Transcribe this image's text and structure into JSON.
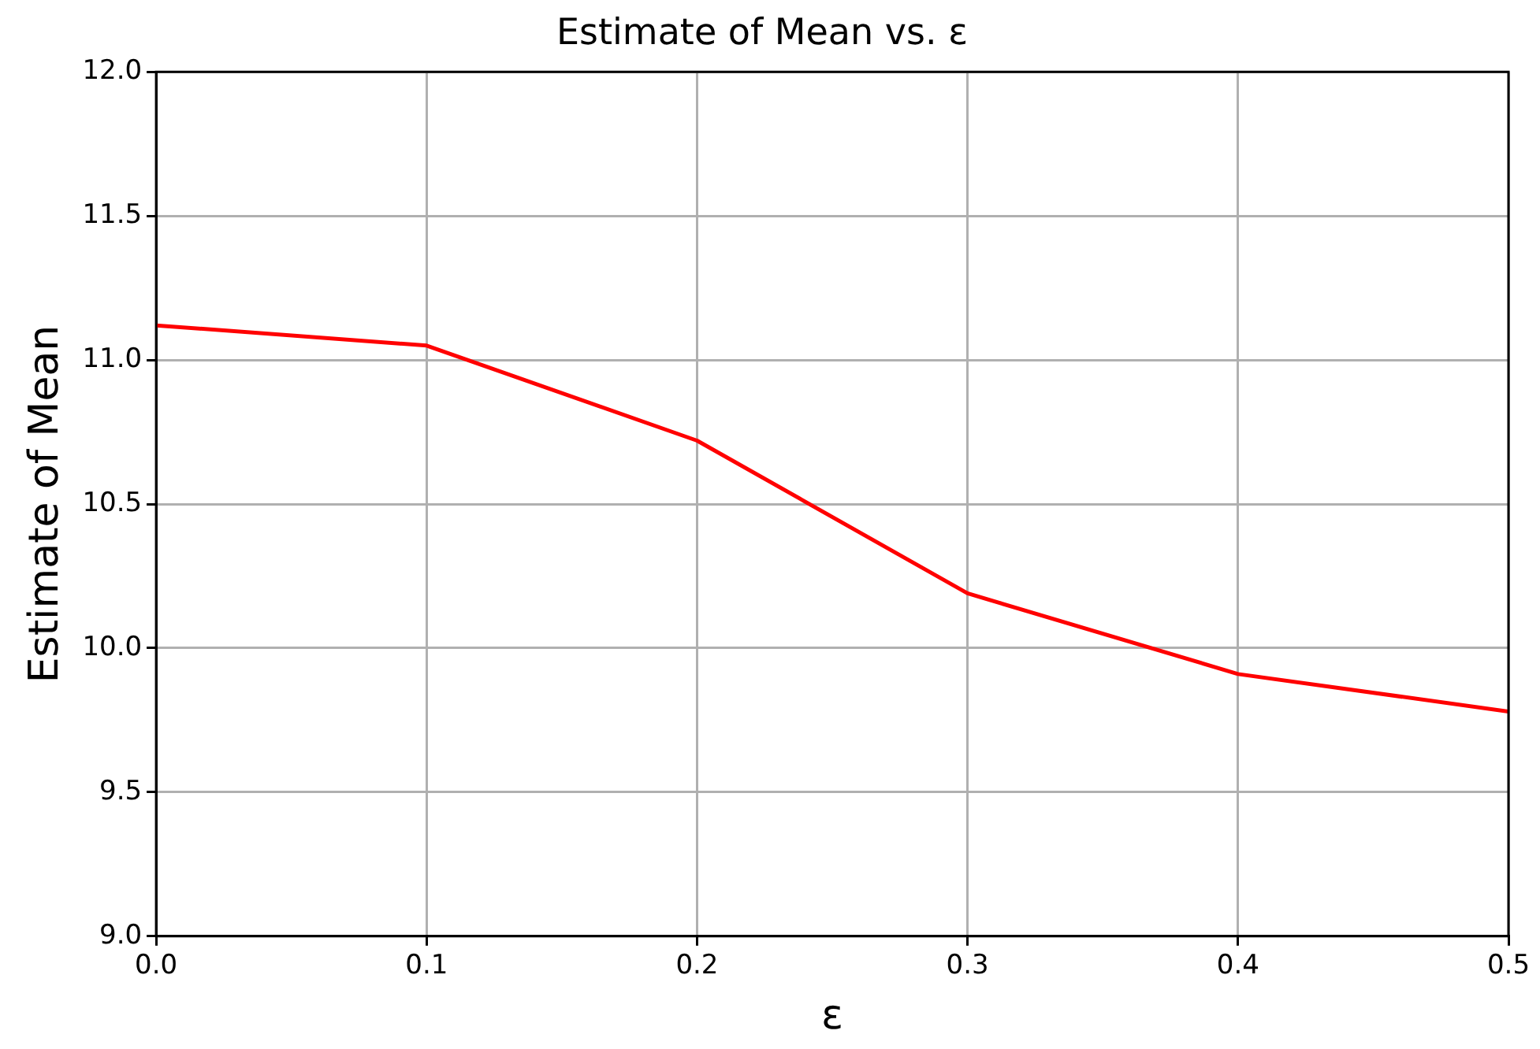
{
  "chart_data": {
    "type": "line",
    "title": "Estimate of Mean vs. ε",
    "xlabel": "ε",
    "ylabel": "Estimate of Mean",
    "x": [
      0,
      0.1,
      0.2,
      0.3,
      0.4,
      0.5
    ],
    "series": [
      {
        "color": "#ff0000",
        "values": [
          11.12,
          11.05,
          10.72,
          10.19,
          9.91,
          9.78
        ]
      }
    ],
    "xlim": [
      0,
      0.5
    ],
    "xticks": [
      {
        "value": 0,
        "label": "0.0"
      },
      0.1,
      0.2,
      0.3,
      0.4,
      0.5
    ],
    "ylim": [
      9,
      12
    ],
    "yticks": [
      {
        "value": 9,
        "label": "9.0"
      },
      9.5,
      {
        "value": 10,
        "label": "10.0"
      },
      10.5,
      {
        "value": 11,
        "label": "11.0"
      },
      11.5,
      {
        "value": 12,
        "label": "12.0"
      }
    ],
    "grid": true,
    "legend": false,
    "marker": "none",
    "line_style": "solid"
  }
}
